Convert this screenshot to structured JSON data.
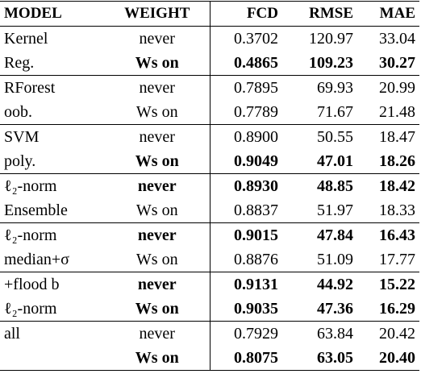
{
  "table": {
    "header": [
      "MODEL",
      "WEIGHT",
      "FCD",
      "RMSE",
      "MAE"
    ],
    "groups": [
      [
        {
          "cells": [
            "Kernel",
            "never",
            "0.3702",
            "120.97",
            "33.04"
          ],
          "bold": [
            false,
            false,
            false,
            false,
            false
          ]
        },
        {
          "cells": [
            "Reg.",
            "Ws on",
            "0.4865",
            "109.23",
            "30.27"
          ],
          "bold": [
            false,
            true,
            true,
            true,
            true
          ]
        }
      ],
      [
        {
          "cells": [
            "RForest",
            "never",
            "0.7895",
            "69.93",
            "20.99"
          ],
          "bold": [
            false,
            false,
            false,
            false,
            false
          ]
        },
        {
          "cells": [
            "oob.",
            "Ws on",
            "0.7789",
            "71.67",
            "21.48"
          ],
          "bold": [
            false,
            false,
            false,
            false,
            false
          ]
        }
      ],
      [
        {
          "cells": [
            "SVM",
            "never",
            "0.8900",
            "50.55",
            "18.47"
          ],
          "bold": [
            false,
            false,
            false,
            false,
            false
          ]
        },
        {
          "cells": [
            "poly.",
            "Ws on",
            "0.9049",
            "47.01",
            "18.26"
          ],
          "bold": [
            false,
            true,
            true,
            true,
            true
          ]
        }
      ],
      [
        {
          "cells": [
            "ℓ₂-norm",
            "never",
            "0.8930",
            "48.85",
            "18.42"
          ],
          "bold": [
            false,
            true,
            true,
            true,
            true
          ]
        },
        {
          "cells": [
            "Ensemble",
            "Ws on",
            "0.8837",
            "51.97",
            "18.33"
          ],
          "bold": [
            false,
            false,
            false,
            false,
            false
          ]
        }
      ],
      [
        {
          "cells": [
            "ℓ₂-norm",
            "never",
            "0.9015",
            "47.84",
            "16.43"
          ],
          "bold": [
            false,
            true,
            true,
            true,
            true
          ]
        },
        {
          "cells": [
            "median+σ",
            "Ws on",
            "0.8876",
            "51.09",
            "17.77"
          ],
          "bold": [
            false,
            false,
            false,
            false,
            false
          ]
        }
      ],
      [
        {
          "cells": [
            "+flood b",
            "never",
            "0.9131",
            "44.92",
            "15.22"
          ],
          "bold": [
            false,
            true,
            true,
            true,
            true
          ]
        },
        {
          "cells": [
            "ℓ₂-norm",
            "Ws on",
            "0.9035",
            "47.36",
            "16.29"
          ],
          "bold": [
            false,
            true,
            true,
            true,
            true
          ]
        }
      ],
      [
        {
          "cells": [
            "all",
            "never",
            "0.7929",
            "63.84",
            "20.42"
          ],
          "bold": [
            false,
            false,
            false,
            false,
            false
          ]
        },
        {
          "cells": [
            null,
            "Ws on",
            "0.8075",
            "63.05",
            "20.40"
          ],
          "bold": [
            false,
            true,
            true,
            true,
            true
          ]
        }
      ]
    ]
  }
}
